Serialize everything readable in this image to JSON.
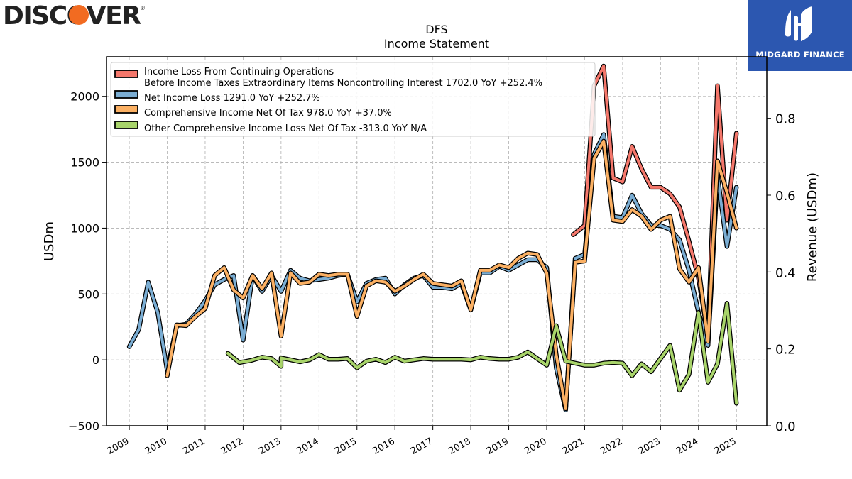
{
  "brand_left": "DISCOVER",
  "brand_left_mark": "®",
  "brand_right": "MIDGARD FINANCE",
  "colors": {
    "series_red": "#f4776b",
    "series_blue": "#7aadd3",
    "series_orange": "#fbb063",
    "series_green": "#a8d46a",
    "logo_right_bg": "#2c57b0",
    "discover_orange": "#f26b21"
  },
  "chart_data": {
    "type": "line",
    "title": "DFS",
    "subtitle": "Income Statement",
    "ylabel": "USDm",
    "y2label": "Revenue (USDm)",
    "ylim": [
      -500,
      2300
    ],
    "y2lim": [
      0.0,
      0.96
    ],
    "xlim": [
      2008.4,
      2025.8
    ],
    "yticks": [
      -500,
      0,
      500,
      1000,
      1500,
      2000
    ],
    "y2ticks": [
      0.0,
      0.2,
      0.4,
      0.6,
      0.8
    ],
    "xticks": [
      "2009",
      "2010",
      "2011",
      "2012",
      "2013",
      "2014",
      "2015",
      "2016",
      "2017",
      "2018",
      "2019",
      "2020",
      "2021",
      "2022",
      "2023",
      "2024",
      "2025"
    ],
    "grid": true,
    "legend_position": "top-left",
    "series": [
      {
        "name": "Income Loss From Continuing Operations\nBefore Income Taxes Extraordinary Items Noncontrolling Interest  1702.0 YoY +252.4%",
        "color": "#f4776b",
        "points": [
          [
            2020.7,
            950
          ],
          [
            2021.0,
            1020
          ],
          [
            2021.25,
            2080
          ],
          [
            2021.5,
            2230
          ],
          [
            2021.75,
            1380
          ],
          [
            2022.0,
            1350
          ],
          [
            2022.25,
            1620
          ],
          [
            2022.5,
            1450
          ],
          [
            2022.75,
            1310
          ],
          [
            2023.0,
            1310
          ],
          [
            2023.25,
            1260
          ],
          [
            2023.5,
            1160
          ],
          [
            2023.75,
            900
          ],
          [
            2024.0,
            620
          ],
          [
            2024.25,
            180
          ],
          [
            2024.5,
            2080
          ],
          [
            2024.75,
            1060
          ],
          [
            2025.0,
            1720
          ]
        ]
      },
      {
        "name": "Net Income Loss  1291.0 YoY +252.7%",
        "color": "#7aadd3",
        "points": [
          [
            2009.0,
            100
          ],
          [
            2009.25,
            230
          ],
          [
            2009.5,
            590
          ],
          [
            2009.75,
            360
          ],
          [
            2010.0,
            -80
          ],
          [
            2010.25,
            260
          ],
          [
            2010.5,
            270
          ],
          [
            2010.75,
            350
          ],
          [
            2011.0,
            450
          ],
          [
            2011.25,
            570
          ],
          [
            2011.5,
            610
          ],
          [
            2011.75,
            640
          ],
          [
            2012.0,
            150
          ],
          [
            2012.25,
            640
          ],
          [
            2012.5,
            520
          ],
          [
            2012.75,
            640
          ],
          [
            2013.0,
            520
          ],
          [
            2013.25,
            680
          ],
          [
            2013.5,
            620
          ],
          [
            2013.75,
            600
          ],
          [
            2014.0,
            610
          ],
          [
            2014.25,
            620
          ],
          [
            2014.5,
            640
          ],
          [
            2014.75,
            650
          ],
          [
            2015.0,
            440
          ],
          [
            2015.25,
            580
          ],
          [
            2015.5,
            610
          ],
          [
            2015.75,
            620
          ],
          [
            2016.0,
            500
          ],
          [
            2016.25,
            570
          ],
          [
            2016.5,
            620
          ],
          [
            2016.75,
            640
          ],
          [
            2017.0,
            550
          ],
          [
            2017.25,
            550
          ],
          [
            2017.5,
            540
          ],
          [
            2017.75,
            580
          ],
          [
            2018.0,
            380
          ],
          [
            2018.25,
            660
          ],
          [
            2018.5,
            660
          ],
          [
            2018.75,
            710
          ],
          [
            2019.0,
            680
          ],
          [
            2019.25,
            720
          ],
          [
            2019.5,
            760
          ],
          [
            2019.75,
            760
          ],
          [
            2020.0,
            700
          ],
          [
            2020.25,
            -60
          ],
          [
            2020.5,
            -380
          ],
          [
            2020.75,
            770
          ],
          [
            2021.0,
            800
          ],
          [
            2021.25,
            1560
          ],
          [
            2021.5,
            1710
          ],
          [
            2021.75,
            1090
          ],
          [
            2022.0,
            1080
          ],
          [
            2022.25,
            1250
          ],
          [
            2022.5,
            1110
          ],
          [
            2022.75,
            1020
          ],
          [
            2023.0,
            1020
          ],
          [
            2023.25,
            990
          ],
          [
            2023.5,
            910
          ],
          [
            2023.75,
            680
          ],
          [
            2024.0,
            360
          ],
          [
            2024.25,
            110
          ],
          [
            2024.5,
            1400
          ],
          [
            2024.75,
            860
          ],
          [
            2025.0,
            1310
          ]
        ]
      },
      {
        "name": "Comprehensive Income Net Of Tax  978.0 YoY +37.0%",
        "color": "#fbb063",
        "points": [
          [
            2010.0,
            -120
          ],
          [
            2010.25,
            265
          ],
          [
            2010.5,
            260
          ],
          [
            2010.75,
            330
          ],
          [
            2011.0,
            390
          ],
          [
            2011.25,
            640
          ],
          [
            2011.5,
            700
          ],
          [
            2011.75,
            530
          ],
          [
            2012.0,
            470
          ],
          [
            2012.25,
            640
          ],
          [
            2012.5,
            540
          ],
          [
            2012.75,
            660
          ],
          [
            2013.0,
            180
          ],
          [
            2013.25,
            660
          ],
          [
            2013.5,
            580
          ],
          [
            2013.75,
            590
          ],
          [
            2014.0,
            650
          ],
          [
            2014.25,
            640
          ],
          [
            2014.5,
            650
          ],
          [
            2014.75,
            650
          ],
          [
            2015.0,
            330
          ],
          [
            2015.25,
            560
          ],
          [
            2015.5,
            600
          ],
          [
            2015.75,
            590
          ],
          [
            2016.0,
            520
          ],
          [
            2016.25,
            560
          ],
          [
            2016.5,
            610
          ],
          [
            2016.75,
            650
          ],
          [
            2017.0,
            580
          ],
          [
            2017.25,
            570
          ],
          [
            2017.5,
            560
          ],
          [
            2017.75,
            600
          ],
          [
            2018.0,
            380
          ],
          [
            2018.25,
            680
          ],
          [
            2018.5,
            680
          ],
          [
            2018.75,
            720
          ],
          [
            2019.0,
            700
          ],
          [
            2019.25,
            770
          ],
          [
            2019.5,
            810
          ],
          [
            2019.75,
            800
          ],
          [
            2020.0,
            660
          ],
          [
            2020.25,
            40
          ],
          [
            2020.5,
            -370
          ],
          [
            2020.75,
            740
          ],
          [
            2021.0,
            750
          ],
          [
            2021.25,
            1530
          ],
          [
            2021.5,
            1660
          ],
          [
            2021.75,
            1060
          ],
          [
            2022.0,
            1050
          ],
          [
            2022.25,
            1140
          ],
          [
            2022.5,
            1090
          ],
          [
            2022.75,
            990
          ],
          [
            2023.0,
            1060
          ],
          [
            2023.25,
            1090
          ],
          [
            2023.5,
            690
          ],
          [
            2023.75,
            590
          ],
          [
            2024.0,
            700
          ],
          [
            2024.25,
            140
          ],
          [
            2024.5,
            1510
          ],
          [
            2024.75,
            1270
          ],
          [
            2025.0,
            1000
          ]
        ]
      },
      {
        "name": "Other Comprehensive Income Loss Net Of Tax  -313.0 YoY N/A",
        "color": "#a8d46a",
        "points": [
          [
            2011.6,
            50
          ],
          [
            2011.9,
            -20
          ],
          [
            2012.2,
            -5
          ],
          [
            2012.5,
            20
          ],
          [
            2012.75,
            10
          ],
          [
            2013.0,
            -50
          ],
          [
            2013.0,
            15
          ],
          [
            2013.25,
            0
          ],
          [
            2013.5,
            -15
          ],
          [
            2013.75,
            0
          ],
          [
            2014.0,
            40
          ],
          [
            2014.25,
            5
          ],
          [
            2014.5,
            5
          ],
          [
            2014.75,
            10
          ],
          [
            2015.0,
            -60
          ],
          [
            2015.25,
            -10
          ],
          [
            2015.5,
            5
          ],
          [
            2015.75,
            -20
          ],
          [
            2016.0,
            20
          ],
          [
            2016.25,
            -10
          ],
          [
            2016.5,
            0
          ],
          [
            2016.75,
            10
          ],
          [
            2017.0,
            5
          ],
          [
            2017.25,
            5
          ],
          [
            2017.5,
            5
          ],
          [
            2017.75,
            5
          ],
          [
            2018.0,
            0
          ],
          [
            2018.25,
            20
          ],
          [
            2018.5,
            10
          ],
          [
            2018.75,
            5
          ],
          [
            2019.0,
            5
          ],
          [
            2019.25,
            20
          ],
          [
            2019.5,
            60
          ],
          [
            2019.75,
            10
          ],
          [
            2020.0,
            -40
          ],
          [
            2020.25,
            260
          ],
          [
            2020.5,
            -10
          ],
          [
            2020.75,
            -25
          ],
          [
            2021.0,
            -40
          ],
          [
            2021.25,
            -40
          ],
          [
            2021.5,
            -25
          ],
          [
            2021.75,
            -20
          ],
          [
            2022.0,
            -25
          ],
          [
            2022.25,
            -120
          ],
          [
            2022.5,
            -30
          ],
          [
            2022.75,
            -90
          ],
          [
            2023.0,
            10
          ],
          [
            2023.25,
            110
          ],
          [
            2023.5,
            -230
          ],
          [
            2023.75,
            -110
          ],
          [
            2024.0,
            360
          ],
          [
            2024.25,
            -170
          ],
          [
            2024.5,
            -30
          ],
          [
            2024.75,
            430
          ],
          [
            2025.0,
            -330
          ]
        ]
      }
    ]
  }
}
